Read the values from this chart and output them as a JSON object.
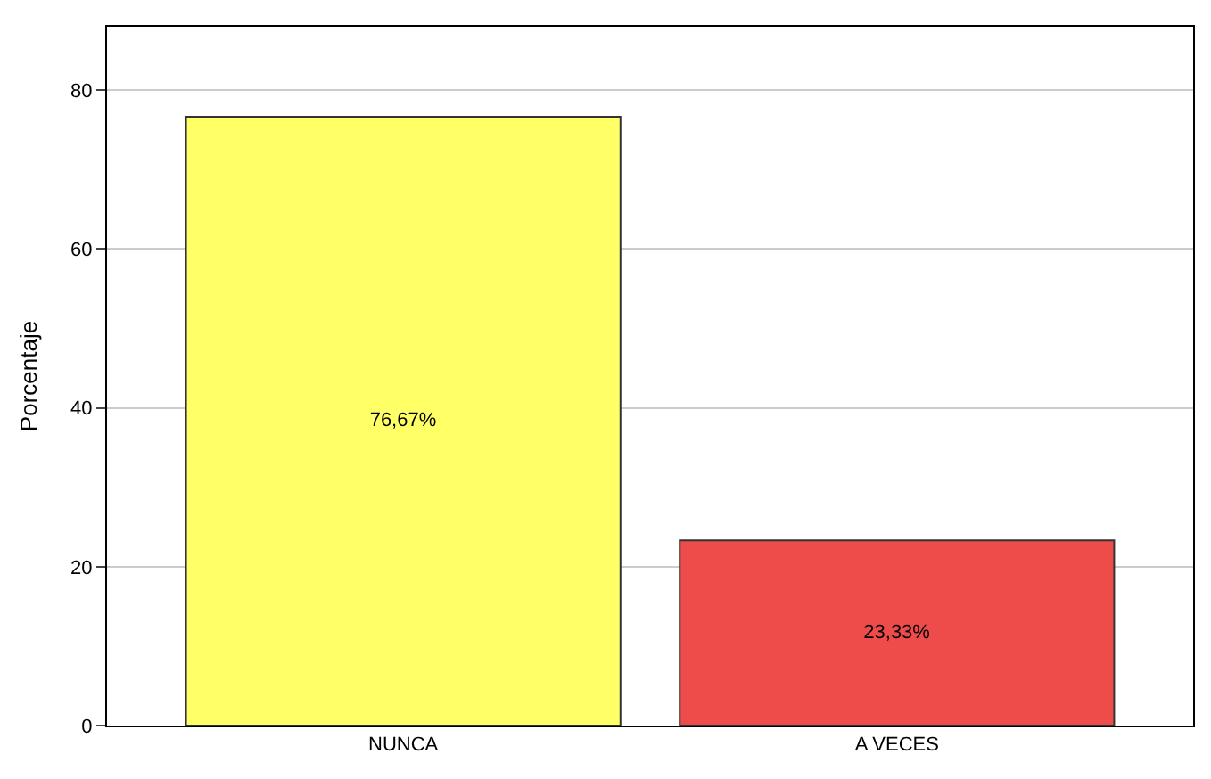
{
  "chart_data": {
    "type": "bar",
    "ylabel": "Porcentaje",
    "categories": [
      "NUNCA",
      "A VECES"
    ],
    "values": [
      76.67,
      23.33
    ],
    "colors": [
      "#ffff66",
      "#ee4b4b"
    ],
    "value_labels": [
      "76,67%",
      "23,33%"
    ],
    "ylim": [
      0,
      88
    ],
    "yticks": [
      0,
      20,
      40,
      60,
      80
    ],
    "grid": "y",
    "legend": false
  }
}
